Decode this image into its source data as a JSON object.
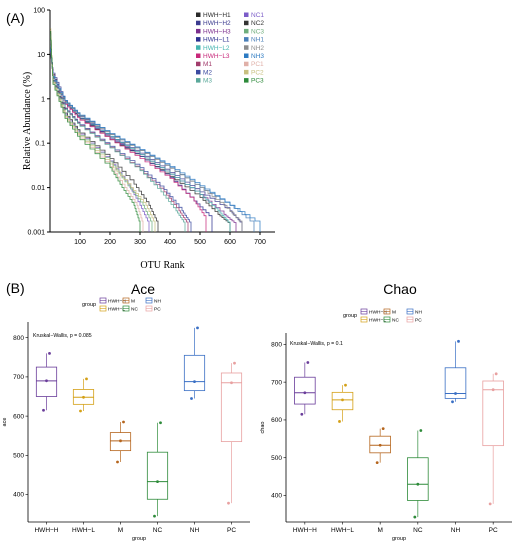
{
  "chart_data": [
    {
      "panel_label": "(A)",
      "type": "line",
      "xlabel": "OTU Rank",
      "ylabel": "Relative Abundance (%)",
      "yscale": "log",
      "xlim": [
        0,
        750
      ],
      "ylim": [
        0.001,
        100
      ],
      "x_ticks": [
        "100",
        "200",
        "300",
        "400",
        "500",
        "600",
        "700"
      ],
      "y_ticks": [
        "0.001",
        "0.01",
        "0.1",
        "1",
        "10",
        "100"
      ],
      "legend_position": "top-right",
      "series": [
        {
          "name": "HWH−H1",
          "color": "#2a2a2a",
          "points": [
            [
              1,
              18
            ],
            [
              10,
              3.5
            ],
            [
              50,
              0.8
            ],
            [
              100,
              0.35
            ],
            [
              200,
              0.12
            ],
            [
              300,
              0.05
            ],
            [
              400,
              0.018
            ],
            [
              500,
              0.006
            ],
            [
              560,
              0.0025
            ],
            [
              600,
              0.0015
            ]
          ]
        },
        {
          "name": "HWH−H2",
          "color": "#3b3b8f",
          "points": [
            [
              1,
              20
            ],
            [
              10,
              3.8
            ],
            [
              50,
              0.9
            ],
            [
              100,
              0.4
            ],
            [
              200,
              0.14
            ],
            [
              300,
              0.06
            ],
            [
              400,
              0.022
            ],
            [
              500,
              0.008
            ],
            [
              600,
              0.003
            ],
            [
              640,
              0.0015
            ]
          ]
        },
        {
          "name": "HWH−H3",
          "color": "#7a2d8c",
          "points": [
            [
              1,
              17
            ],
            [
              10,
              3.3
            ],
            [
              50,
              0.85
            ],
            [
              100,
              0.37
            ],
            [
              200,
              0.13
            ],
            [
              300,
              0.055
            ],
            [
              400,
              0.02
            ],
            [
              500,
              0.007
            ],
            [
              580,
              0.0025
            ],
            [
              620,
              0.0015
            ]
          ]
        },
        {
          "name": "HWH−L1",
          "color": "#2b2f8f",
          "points": [
            [
              1,
              15
            ],
            [
              10,
              3.0
            ],
            [
              50,
              0.8
            ],
            [
              100,
              0.36
            ],
            [
              200,
              0.13
            ],
            [
              300,
              0.05
            ],
            [
              400,
              0.017
            ],
            [
              480,
              0.005
            ],
            [
              540,
              0.002
            ]
          ]
        },
        {
          "name": "HWH−L2",
          "color": "#44b4b0",
          "points": [
            [
              1,
              16
            ],
            [
              10,
              3.2
            ],
            [
              50,
              0.82
            ],
            [
              100,
              0.37
            ],
            [
              200,
              0.14
            ],
            [
              300,
              0.055
            ],
            [
              400,
              0.02
            ],
            [
              500,
              0.007
            ],
            [
              560,
              0.003
            ],
            [
              600,
              0.0015
            ]
          ]
        },
        {
          "name": "HWH−L3",
          "color": "#c8287a",
          "points": [
            [
              1,
              14
            ],
            [
              10,
              2.8
            ],
            [
              50,
              0.75
            ],
            [
              100,
              0.33
            ],
            [
              200,
              0.12
            ],
            [
              300,
              0.045
            ],
            [
              400,
              0.016
            ],
            [
              480,
              0.005
            ],
            [
              520,
              0.002
            ]
          ]
        },
        {
          "name": "M1",
          "color": "#a23c6c",
          "points": [
            [
              1,
              22
            ],
            [
              10,
              3.0
            ],
            [
              50,
              0.6
            ],
            [
              100,
              0.25
            ],
            [
              200,
              0.08
            ],
            [
              300,
              0.025
            ],
            [
              380,
              0.008
            ],
            [
              430,
              0.003
            ],
            [
              460,
              0.0015
            ]
          ]
        },
        {
          "name": "M2",
          "color": "#3b4aa0",
          "points": [
            [
              1,
              24
            ],
            [
              10,
              3.1
            ],
            [
              50,
              0.62
            ],
            [
              100,
              0.26
            ],
            [
              200,
              0.085
            ],
            [
              300,
              0.028
            ],
            [
              380,
              0.009
            ],
            [
              440,
              0.003
            ],
            [
              470,
              0.0015
            ]
          ]
        },
        {
          "name": "M3",
          "color": "#5aa89a",
          "points": [
            [
              1,
              21
            ],
            [
              10,
              2.9
            ],
            [
              50,
              0.58
            ],
            [
              100,
              0.24
            ],
            [
              200,
              0.078
            ],
            [
              300,
              0.024
            ],
            [
              370,
              0.008
            ],
            [
              420,
              0.003
            ],
            [
              450,
              0.0015
            ]
          ]
        },
        {
          "name": "NC1",
          "color": "#7b5cc8",
          "points": [
            [
              1,
              28
            ],
            [
              10,
              2.5
            ],
            [
              50,
              0.45
            ],
            [
              100,
              0.16
            ],
            [
              200,
              0.04
            ],
            [
              260,
              0.012
            ],
            [
              300,
              0.004
            ],
            [
              330,
              0.0015
            ]
          ]
        },
        {
          "name": "NC2",
          "color": "#333333",
          "points": [
            [
              1,
              30
            ],
            [
              10,
              2.6
            ],
            [
              50,
              0.48
            ],
            [
              100,
              0.17
            ],
            [
              200,
              0.045
            ],
            [
              280,
              0.012
            ],
            [
              330,
              0.004
            ],
            [
              360,
              0.0015
            ]
          ]
        },
        {
          "name": "NC3",
          "color": "#6fae7c",
          "points": [
            [
              1,
              26
            ],
            [
              10,
              2.4
            ],
            [
              50,
              0.42
            ],
            [
              100,
              0.15
            ],
            [
              200,
              0.038
            ],
            [
              260,
              0.011
            ],
            [
              310,
              0.004
            ],
            [
              340,
              0.0015
            ]
          ]
        },
        {
          "name": "NH1",
          "color": "#4a7fb8",
          "points": [
            [
              1,
              14
            ],
            [
              10,
              3.0
            ],
            [
              50,
              0.9
            ],
            [
              100,
              0.42
            ],
            [
              200,
              0.16
            ],
            [
              300,
              0.07
            ],
            [
              400,
              0.028
            ],
            [
              500,
              0.01
            ],
            [
              600,
              0.004
            ],
            [
              680,
              0.0015
            ]
          ]
        },
        {
          "name": "NH2",
          "color": "#8c8c8c",
          "points": [
            [
              1,
              13
            ],
            [
              10,
              2.9
            ],
            [
              50,
              0.88
            ],
            [
              100,
              0.41
            ],
            [
              200,
              0.155
            ],
            [
              300,
              0.068
            ],
            [
              400,
              0.027
            ],
            [
              500,
              0.01
            ],
            [
              580,
              0.004
            ],
            [
              640,
              0.0015
            ]
          ]
        },
        {
          "name": "NH3",
          "color": "#2c7ac2",
          "points": [
            [
              1,
              15
            ],
            [
              10,
              3.1
            ],
            [
              50,
              0.92
            ],
            [
              100,
              0.43
            ],
            [
              200,
              0.165
            ],
            [
              300,
              0.072
            ],
            [
              400,
              0.03
            ],
            [
              500,
              0.011
            ],
            [
              600,
              0.004
            ],
            [
              700,
              0.0015
            ]
          ]
        },
        {
          "name": "PC1",
          "color": "#e0b0a8",
          "points": [
            [
              1,
              35
            ],
            [
              10,
              2.2
            ],
            [
              50,
              0.38
            ],
            [
              100,
              0.13
            ],
            [
              200,
              0.03
            ],
            [
              250,
              0.01
            ],
            [
              290,
              0.004
            ],
            [
              310,
              0.0015
            ]
          ]
        },
        {
          "name": "PC2",
          "color": "#c8c080",
          "points": [
            [
              1,
              38
            ],
            [
              10,
              2.3
            ],
            [
              50,
              0.4
            ],
            [
              100,
              0.14
            ],
            [
              200,
              0.034
            ],
            [
              270,
              0.01
            ],
            [
              320,
              0.004
            ],
            [
              350,
              0.0015
            ]
          ]
        },
        {
          "name": "PC3",
          "color": "#2d8a3a",
          "points": [
            [
              1,
              33
            ],
            [
              10,
              2.1
            ],
            [
              50,
              0.36
            ],
            [
              100,
              0.12
            ],
            [
              200,
              0.028
            ],
            [
              240,
              0.01
            ],
            [
              280,
              0.004
            ],
            [
              300,
              0.0015
            ]
          ]
        }
      ]
    },
    {
      "panel_label": "(B)",
      "type": "box",
      "title": "Ace",
      "xlabel": "group",
      "ylabel": "ace",
      "legend_title": "group",
      "annotation": "Kruskal−Wallis, p = 0.085",
      "ylim": [
        330,
        840
      ],
      "y_ticks": [
        400,
        500,
        600,
        700,
        800
      ],
      "groups": [
        {
          "name": "HWH−H",
          "color": "#6a3d9a",
          "min": 615,
          "q1": 650,
          "median": 690,
          "q3": 725,
          "max": 760,
          "points": [
            615,
            690,
            760
          ]
        },
        {
          "name": "HWH−L",
          "color": "#d4a017",
          "min": 613,
          "q1": 630,
          "median": 648,
          "q3": 668,
          "max": 695,
          "points": [
            613,
            648,
            695
          ]
        },
        {
          "name": "M",
          "color": "#b5651d",
          "min": 483,
          "q1": 512,
          "median": 537,
          "q3": 558,
          "max": 585,
          "points": [
            483,
            537,
            585
          ]
        },
        {
          "name": "NC",
          "color": "#2e8b3a",
          "min": 345,
          "q1": 388,
          "median": 433,
          "q3": 508,
          "max": 583,
          "points": [
            345,
            433,
            583
          ]
        },
        {
          "name": "NH",
          "color": "#3a6fc4",
          "min": 645,
          "q1": 665,
          "median": 688,
          "q3": 755,
          "max": 825,
          "points": [
            645,
            688,
            825
          ]
        },
        {
          "name": "PC",
          "color": "#e8a0a0",
          "min": 378,
          "q1": 535,
          "median": 685,
          "q3": 710,
          "max": 735,
          "points": [
            378,
            685,
            735
          ]
        }
      ]
    },
    {
      "panel_label": "",
      "type": "box",
      "title": "Chao",
      "xlabel": "group",
      "ylabel": "chao",
      "legend_title": "group",
      "annotation": "Kruskal−Wallis, p = 0.1",
      "ylim": [
        330,
        830
      ],
      "y_ticks": [
        400,
        500,
        600,
        700,
        800
      ],
      "groups": [
        {
          "name": "HWH−H",
          "color": "#6a3d9a",
          "min": 615,
          "q1": 642,
          "median": 672,
          "q3": 713,
          "max": 752,
          "points": [
            615,
            672,
            752
          ]
        },
        {
          "name": "HWH−L",
          "color": "#d4a017",
          "min": 596,
          "q1": 627,
          "median": 653,
          "q3": 673,
          "max": 692,
          "points": [
            596,
            653,
            692
          ]
        },
        {
          "name": "M",
          "color": "#b5651d",
          "min": 487,
          "q1": 513,
          "median": 533,
          "q3": 557,
          "max": 577,
          "points": [
            487,
            533,
            577
          ]
        },
        {
          "name": "NC",
          "color": "#2e8b3a",
          "min": 343,
          "q1": 387,
          "median": 430,
          "q3": 500,
          "max": 572,
          "points": [
            343,
            430,
            572
          ]
        },
        {
          "name": "NH",
          "color": "#3a6fc4",
          "min": 648,
          "q1": 657,
          "median": 670,
          "q3": 738,
          "max": 808,
          "points": [
            648,
            670,
            808
          ]
        },
        {
          "name": "PC",
          "color": "#e8a0a0",
          "min": 378,
          "q1": 532,
          "median": 680,
          "q3": 703,
          "max": 722,
          "points": [
            378,
            680,
            722
          ]
        }
      ]
    }
  ]
}
